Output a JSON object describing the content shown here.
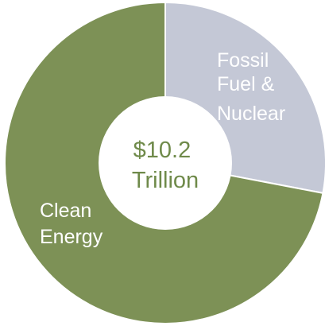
{
  "chart_data": {
    "type": "pie",
    "title": "",
    "center_label": [
      "$10.2",
      "Trillion"
    ],
    "slices": [
      {
        "label": [
          "Fossil",
          "Fuel &",
          "Nuclear"
        ],
        "value": 28,
        "color": "#c4c8d6"
      },
      {
        "label": [
          "Clean",
          "Energy"
        ],
        "value": 72,
        "color": "#7d9156"
      }
    ],
    "center_color": "#6f8a4a"
  }
}
